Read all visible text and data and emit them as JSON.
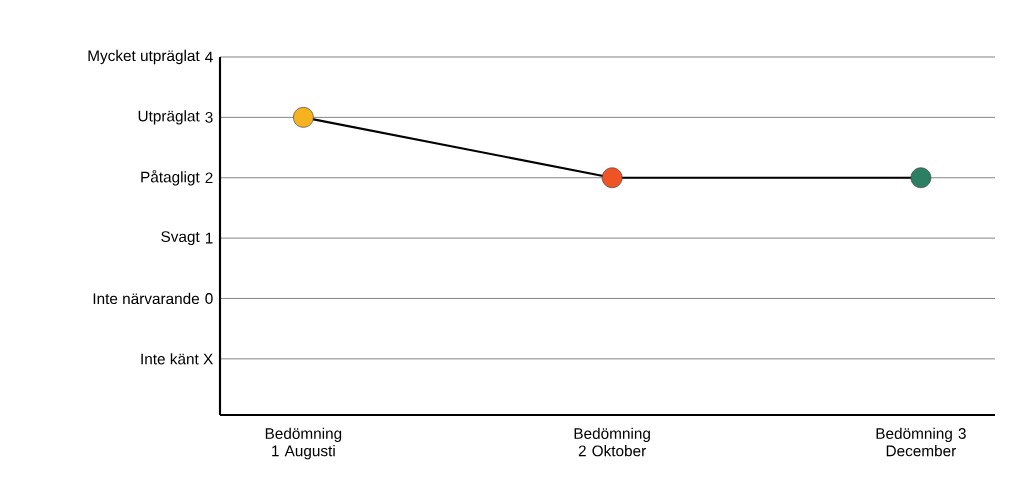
{
  "chart_data": {
    "type": "line",
    "categories": [
      "Bedömning 1 Augusti",
      "Bedömning 2 Oktober",
      "Bedömning 3 December"
    ],
    "series": [
      {
        "color": "#000000",
        "colors": [
          "#f7b21f",
          "#f05324",
          "#2b7f63"
        ],
        "values": [
          3,
          2,
          2
        ]
      }
    ],
    "ylim": [
      -1.93,
      4
    ],
    "yticks": [
      4,
      3,
      2,
      1,
      0,
      {
        "value": -1,
        "label": "Inte känt X"
      }
    ],
    "annotations": [
      "Mycket utpräglat",
      "Utpräglat",
      "Påtagligt",
      "Svagt",
      "Inte närvarande"
    ],
    "grid": "y",
    "marker": "circle",
    "line_style": "solid"
  }
}
